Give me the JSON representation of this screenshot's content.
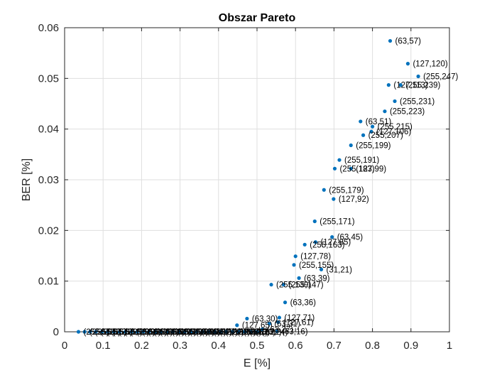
{
  "chart_data": {
    "type": "scatter",
    "title": "Obszar Pareto",
    "xlabel": "E [%]",
    "ylabel": "BER [%]",
    "xlim": [
      0,
      1
    ],
    "ylim": [
      0,
      0.06
    ],
    "x_ticks": [
      "0",
      "0.1",
      "0.2",
      "0.3",
      "0.4",
      "0.5",
      "0.6",
      "0.7",
      "0.8",
      "0.9",
      "1"
    ],
    "y_ticks": [
      "0",
      "0.01",
      "0.02",
      "0.03",
      "0.04",
      "0.05",
      "0.06"
    ],
    "grid": true,
    "marker_color": "#0072BD",
    "points": [
      {
        "x": 0.846,
        "y": 0.0574,
        "label": "(63,57)"
      },
      {
        "x": 0.892,
        "y": 0.0529,
        "label": "(127,120)"
      },
      {
        "x": 0.919,
        "y": 0.0504,
        "label": "(255,247)"
      },
      {
        "x": 0.842,
        "y": 0.0487,
        "label": "(127,113)"
      },
      {
        "x": 0.873,
        "y": 0.0487,
        "label": "(255,239)"
      },
      {
        "x": 0.858,
        "y": 0.0455,
        "label": "(255,231)"
      },
      {
        "x": 0.832,
        "y": 0.0435,
        "label": "(255,223)"
      },
      {
        "x": 0.769,
        "y": 0.0415,
        "label": "(63,51)"
      },
      {
        "x": 0.8,
        "y": 0.0405,
        "label": "(255,215)"
      },
      {
        "x": 0.797,
        "y": 0.0395,
        "label": "(127,106)"
      },
      {
        "x": 0.776,
        "y": 0.0388,
        "label": "(255,207)"
      },
      {
        "x": 0.744,
        "y": 0.0368,
        "label": "(255,199)"
      },
      {
        "x": 0.714,
        "y": 0.0339,
        "label": "(255,191)"
      },
      {
        "x": 0.702,
        "y": 0.0322,
        "label": "(255,183)"
      },
      {
        "x": 0.744,
        "y": 0.0322,
        "label": "(127,99)"
      },
      {
        "x": 0.674,
        "y": 0.028,
        "label": "(255,179)"
      },
      {
        "x": 0.699,
        "y": 0.0262,
        "label": "(127,92)"
      },
      {
        "x": 0.65,
        "y": 0.0218,
        "label": "(255,171)"
      },
      {
        "x": 0.695,
        "y": 0.0187,
        "label": "(63,45)"
      },
      {
        "x": 0.652,
        "y": 0.0177,
        "label": "(127,85)"
      },
      {
        "x": 0.624,
        "y": 0.0172,
        "label": "(255,163)"
      },
      {
        "x": 0.6,
        "y": 0.0149,
        "label": "(127,78)"
      },
      {
        "x": 0.596,
        "y": 0.0132,
        "label": "(255,155)"
      },
      {
        "x": 0.667,
        "y": 0.0123,
        "label": "(31,21)"
      },
      {
        "x": 0.609,
        "y": 0.0106,
        "label": "(63,39)"
      },
      {
        "x": 0.537,
        "y": 0.0093,
        "label": "(255,139)"
      },
      {
        "x": 0.569,
        "y": 0.0093,
        "label": "(255,147)"
      },
      {
        "x": 0.573,
        "y": 0.0058,
        "label": "(63,36)"
      },
      {
        "x": 0.474,
        "y": 0.0026,
        "label": "(63,30)"
      },
      {
        "x": 0.558,
        "y": 0.0028,
        "label": "(127,71)"
      },
      {
        "x": 0.448,
        "y": 0.0013,
        "label": "(127,65)"
      },
      {
        "x": 0.532,
        "y": 0.0016,
        "label": "(63,31)"
      },
      {
        "x": 0.555,
        "y": 0.0019,
        "label": "(127,61)"
      },
      {
        "x": 0.514,
        "y": 0.0005,
        "label": "(63,27)"
      },
      {
        "x": 0.552,
        "y": 0.0001,
        "label": "(63,16)"
      },
      {
        "x": 0.036,
        "y": 0.0,
        "label": "(255,1)"
      },
      {
        "x": 0.052,
        "y": 0.0,
        "label": "(255,2)"
      },
      {
        "x": 0.066,
        "y": 0.0,
        "label": "(255,3)"
      },
      {
        "x": 0.081,
        "y": 0.0,
        "label": "(255,5)"
      },
      {
        "x": 0.097,
        "y": 0.0,
        "label": "(255,8)"
      },
      {
        "x": 0.112,
        "y": 0.0,
        "label": "(255,11)"
      },
      {
        "x": 0.128,
        "y": 0.0,
        "label": "(255,13)"
      },
      {
        "x": 0.143,
        "y": 0.0,
        "label": "(255,16)"
      },
      {
        "x": 0.158,
        "y": 0.0,
        "label": "(255,19)"
      },
      {
        "x": 0.174,
        "y": 0.0,
        "label": "(255,21)"
      },
      {
        "x": 0.189,
        "y": 0.0,
        "label": "(255,24)"
      },
      {
        "x": 0.204,
        "y": 0.0,
        "label": "(255,27)"
      },
      {
        "x": 0.219,
        "y": 0.0,
        "label": "(255,29)"
      },
      {
        "x": 0.235,
        "y": 0.0,
        "label": "(255,32)"
      },
      {
        "x": 0.25,
        "y": 0.0,
        "label": "(255,35)"
      },
      {
        "x": 0.266,
        "y": 0.0,
        "label": "(255,37)"
      },
      {
        "x": 0.281,
        "y": 0.0,
        "label": "(255,40)"
      },
      {
        "x": 0.297,
        "y": 0.0,
        "label": "(255,43)"
      },
      {
        "x": 0.312,
        "y": 0.0,
        "label": "(255,45)"
      },
      {
        "x": 0.328,
        "y": 0.0,
        "label": "(255,48)"
      },
      {
        "x": 0.343,
        "y": 0.0,
        "label": "(255,51)"
      },
      {
        "x": 0.358,
        "y": 0.0,
        "label": "(127,27)"
      },
      {
        "x": 0.374,
        "y": 0.0,
        "label": "(127,29)"
      },
      {
        "x": 0.39,
        "y": 0.0,
        "label": "(127,31)"
      },
      {
        "x": 0.405,
        "y": 0.0,
        "label": "(127,35)"
      },
      {
        "x": 0.42,
        "y": 0.0,
        "label": "(127,38)"
      },
      {
        "x": 0.436,
        "y": 0.0,
        "label": "(127,41)"
      },
      {
        "x": 0.452,
        "y": 0.0,
        "label": "(63,18)"
      },
      {
        "x": 0.468,
        "y": 0.0,
        "label": "(63,20)"
      },
      {
        "x": 0.484,
        "y": 0.0,
        "label": "(63,22)"
      },
      {
        "x": 0.5,
        "y": 0.0,
        "label": "(63,24)"
      }
    ]
  }
}
